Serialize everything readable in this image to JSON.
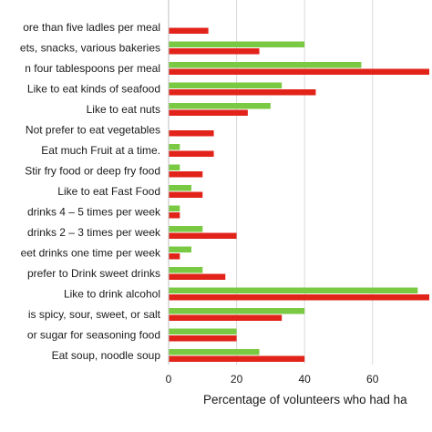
{
  "chart_data": {
    "type": "bar",
    "orientation": "horizontal",
    "xlabel": "Percentage of volunteers who had ha",
    "xlim": [
      0,
      77.5
    ],
    "xticks": [
      0,
      20,
      40,
      60
    ],
    "grid": true,
    "colors": {
      "green": "#7ac943",
      "red": "#e2231a"
    },
    "categories": [
      "ore than five ladles per meal",
      "ets, snacks, various bakeries",
      "n four tablespoons per meal",
      "Like to eat kinds of seafood",
      "Like to eat nuts",
      "Not prefer to eat vegetables",
      "Eat much Fruit at a time.",
      "Stir fry food or deep fry food",
      "Like to eat Fast Food",
      "drinks 4 – 5 times per week",
      "drinks 2 – 3 times per week",
      "eet drinks one time per week",
      "prefer to Drink sweet drinks",
      "Like to drink alcohol",
      "is spicy, sour, sweet, or salt",
      "or sugar for seasoning food",
      "Eat soup, noodle soup"
    ],
    "series": [
      {
        "color": "green",
        "values": [
          0,
          40,
          56.7,
          33.3,
          30,
          0,
          3.3,
          3.3,
          6.7,
          3.3,
          10,
          6.7,
          10,
          73.3,
          40,
          20,
          26.7
        ]
      },
      {
        "color": "red",
        "values": [
          11.7,
          26.7,
          76.7,
          43.3,
          23.3,
          13.3,
          13.3,
          10,
          10,
          3.3,
          20,
          3.3,
          16.7,
          76.7,
          33.3,
          20,
          40
        ]
      }
    ]
  }
}
